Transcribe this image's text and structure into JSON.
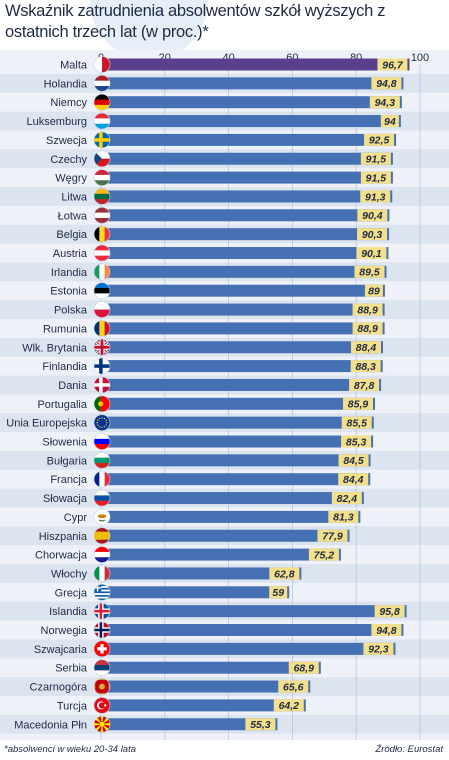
{
  "title": "Wskaźnik zatrudnienia absolwentów szkół wyższych z ostatnich trzech lat (w proc.)*",
  "footnote": "*absolwenci w wieku 20-34 lata",
  "source": "Źródło: Eurostat",
  "colors": {
    "purple": "#5a3f8f",
    "blue": "#4570b4",
    "label_box": "#f4e08a",
    "panel": "#eef2f8",
    "row_stripe": "#dce4f0"
  },
  "chart_data": {
    "type": "bar",
    "orientation": "horizontal",
    "title": "Wskaźnik zatrudnienia absolwentów szkół wyższych z ostatnich trzech lat (w proc.)*",
    "xlim": [
      0,
      100
    ],
    "xticks": [
      0,
      20,
      40,
      60,
      80,
      100
    ],
    "grid": true,
    "categories": [
      "Malta",
      "Holandia",
      "Niemcy",
      "Luksemburg",
      "Szwecja",
      "Czechy",
      "Węgry",
      "Litwa",
      "Łotwa",
      "Belgia",
      "Austria",
      "Irlandia",
      "Estonia",
      "Polska",
      "Rumunia",
      "Wlk. Brytania",
      "Finlandia",
      "Dania",
      "Portugalia",
      "Unia Europejska",
      "Słowenia",
      "Bułgaria",
      "Francja",
      "Słowacja",
      "Cypr",
      "Hiszpania",
      "Chorwacja",
      "Włochy",
      "Grecja",
      "Islandia",
      "Norwegia",
      "Szwajcaria",
      "Serbia",
      "Czarnogóra",
      "Turcja",
      "Macedonia Płn"
    ],
    "values": [
      96.7,
      94.8,
      94.3,
      94,
      92.5,
      91.5,
      91.5,
      91.3,
      90.4,
      90.3,
      90.1,
      89.5,
      89,
      88.9,
      88.9,
      88.4,
      88.3,
      87.8,
      85.9,
      85.5,
      85.3,
      84.5,
      84.4,
      82.4,
      81.3,
      77.9,
      75.2,
      62.8,
      59,
      95.8,
      94.8,
      92.3,
      68.9,
      65.6,
      64.2,
      55.3
    ],
    "value_labels": [
      "96,7",
      "94,8",
      "94,3",
      "94",
      "92,5",
      "91,5",
      "91,5",
      "91,3",
      "90,4",
      "90,3",
      "90,1",
      "89,5",
      "89",
      "88,9",
      "88,9",
      "88,4",
      "88,3",
      "87,8",
      "85,9",
      "85,5",
      "85,3",
      "84,5",
      "84,4",
      "82,4",
      "81,3",
      "77,9",
      "75,2",
      "62,8",
      "59",
      "95,8",
      "94,8",
      "92,3",
      "68,9",
      "65,6",
      "64,2",
      "55,3"
    ],
    "flags": [
      "malta-flag",
      "netherlands-flag",
      "germany-flag",
      "luxembourg-flag",
      "sweden-flag",
      "czechia-flag",
      "hungary-flag",
      "lithuania-flag",
      "latvia-flag",
      "belgium-flag",
      "austria-flag",
      "ireland-flag",
      "estonia-flag",
      "poland-flag",
      "romania-flag",
      "uk-flag",
      "finland-flag",
      "denmark-flag",
      "portugal-flag",
      "eu-flag",
      "slovenia-flag",
      "bulgaria-flag",
      "france-flag",
      "slovakia-flag",
      "cyprus-flag",
      "spain-flag",
      "croatia-flag",
      "italy-flag",
      "greece-flag",
      "iceland-flag",
      "norway-flag",
      "switzerland-flag",
      "serbia-flag",
      "montenegro-flag",
      "turkey-flag",
      "north-macedonia-flag"
    ],
    "bar_colors": [
      "#5a3f8f",
      "#4570b4",
      "#4570b4",
      "#4570b4",
      "#4570b4",
      "#4570b4",
      "#4570b4",
      "#4570b4",
      "#4570b4",
      "#4570b4",
      "#4570b4",
      "#4570b4",
      "#4570b4",
      "#4570b4",
      "#4570b4",
      "#4570b4",
      "#4570b4",
      "#4570b4",
      "#4570b4",
      "#4570b4",
      "#4570b4",
      "#4570b4",
      "#4570b4",
      "#4570b4",
      "#4570b4",
      "#4570b4",
      "#4570b4",
      "#4570b4",
      "#4570b4",
      "#4570b4",
      "#4570b4",
      "#4570b4",
      "#4570b4",
      "#4570b4",
      "#4570b4",
      "#4570b4"
    ]
  }
}
